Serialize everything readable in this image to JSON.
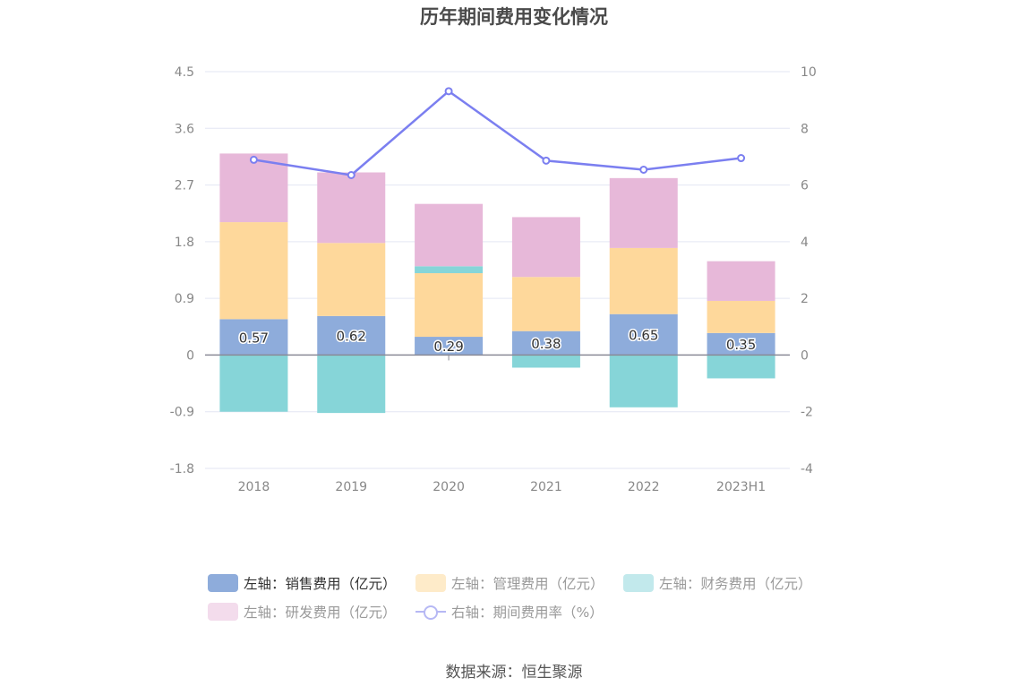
{
  "chart_data": {
    "type": "bar",
    "title": "历年期间费用变化情况",
    "categories": [
      "2018",
      "2019",
      "2020",
      "2021",
      "2022",
      "2023H1"
    ],
    "left_axis": {
      "ylim": [
        -1.8,
        4.5
      ],
      "ticks": [
        "4.5",
        "3.6",
        "2.7",
        "1.8",
        "0.9",
        "0",
        "-0.9",
        "-1.8"
      ],
      "tick_values": [
        4.5,
        3.6,
        2.7,
        1.8,
        0.9,
        0,
        -0.9,
        -1.8
      ]
    },
    "right_axis": {
      "ylim": [
        -4,
        10
      ],
      "ticks": [
        "10",
        "8",
        "6",
        "4",
        "2",
        "0",
        "-2",
        "-4"
      ],
      "tick_values": [
        10,
        8,
        6,
        4,
        2,
        0,
        -2,
        -4
      ]
    },
    "grid": true,
    "legend_position": "bottom",
    "series": [
      {
        "name": "左轴：销售费用（亿元）",
        "type": "bar",
        "axis": "left",
        "color": "#8eacdb",
        "values": [
          0.57,
          0.62,
          0.29,
          0.38,
          0.65,
          0.35
        ],
        "labels": [
          "0.57",
          "0.62",
          "0.29",
          "0.38",
          "0.65",
          "0.35"
        ]
      },
      {
        "name": "左轴：管理费用（亿元）",
        "type": "bar",
        "axis": "left",
        "color": "#fed89b",
        "values": [
          1.54,
          1.16,
          1.01,
          0.86,
          1.05,
          0.51
        ]
      },
      {
        "name": "左轴：财务费用（亿元）",
        "type": "bar",
        "axis": "left",
        "color": "#86d5d8",
        "values": [
          -0.9,
          -0.92,
          0.11,
          -0.2,
          -0.83,
          -0.37
        ]
      },
      {
        "name": "左轴：研发费用（亿元）",
        "type": "bar",
        "axis": "left",
        "color": "#e7b8d9",
        "values": [
          1.09,
          1.12,
          0.99,
          0.95,
          1.11,
          0.63
        ]
      },
      {
        "name": "右轴：期间费用率（%）",
        "type": "line",
        "axis": "right",
        "color": "#7b7ff0",
        "values": [
          6.89,
          6.35,
          9.31,
          6.86,
          6.54,
          6.95
        ]
      }
    ]
  },
  "legend": {
    "items": [
      {
        "label": "左轴：销售费用（亿元）",
        "swatch": "#8eacdb",
        "text_color": "#333333"
      },
      {
        "label": "左轴：管理费用（亿元）",
        "swatch": "#feebc9",
        "text_color": "#999999"
      },
      {
        "label": "左轴：财务费用（亿元）",
        "swatch": "#c2e9ec",
        "text_color": "#999999"
      },
      {
        "label": "左轴：研发费用（亿元）",
        "swatch": "#f3dcec",
        "text_color": "#999999"
      },
      {
        "label": "右轴：期间费用率（%）",
        "swatch": "line",
        "text_color": "#999999"
      }
    ]
  },
  "source": "数据来源：恒生聚源"
}
